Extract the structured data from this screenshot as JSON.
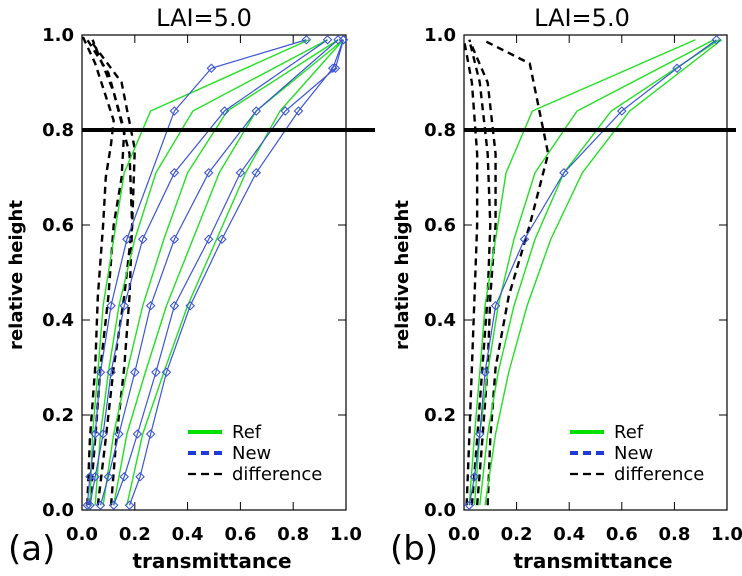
{
  "figure": {
    "panel_labels": [
      "(a)",
      "(b)"
    ]
  },
  "chart_data": [
    {
      "type": "line",
      "panel": "(a)",
      "title": "LAI=5.0",
      "xlabel": "transmittance",
      "ylabel": "relative height",
      "xlim": [
        0.0,
        1.0
      ],
      "ylim": [
        0.0,
        1.0
      ],
      "xticks": [
        "0.0",
        "0.2",
        "0.4",
        "0.6",
        "0.8",
        "1.0"
      ],
      "yticks": [
        "0.0",
        "0.2",
        "0.4",
        "0.6",
        "0.8",
        "1.0"
      ],
      "hline": 0.8,
      "legend": {
        "position": "bottom-right",
        "entries": [
          {
            "label": "Ref",
            "style": "solid",
            "color": "#00e000"
          },
          {
            "label": "New",
            "style": "dashed",
            "color": "#1e3adb"
          },
          {
            "label": "difference",
            "style": "dashed",
            "color": "#000000"
          }
        ]
      },
      "colors": {
        "ref": "#22e022",
        "new": "#3b55d6",
        "difference": "#000000"
      },
      "series_ref": [
        {
          "x": [
            0.03,
            0.04,
            0.06,
            0.08,
            0.12,
            0.16,
            0.26,
            0.86
          ],
          "y": [
            0.01,
            0.16,
            0.29,
            0.43,
            0.57,
            0.71,
            0.84,
            0.99
          ]
        },
        {
          "x": [
            0.05,
            0.07,
            0.1,
            0.14,
            0.2,
            0.28,
            0.42,
            0.93
          ],
          "y": [
            0.01,
            0.16,
            0.29,
            0.43,
            0.57,
            0.71,
            0.84,
            0.99
          ]
        },
        {
          "x": [
            0.08,
            0.12,
            0.17,
            0.23,
            0.31,
            0.4,
            0.55,
            0.97
          ],
          "y": [
            0.01,
            0.16,
            0.29,
            0.43,
            0.57,
            0.71,
            0.84,
            0.99
          ]
        },
        {
          "x": [
            0.12,
            0.17,
            0.24,
            0.32,
            0.42,
            0.52,
            0.66,
            0.99
          ],
          "y": [
            0.01,
            0.16,
            0.29,
            0.43,
            0.57,
            0.71,
            0.84,
            0.99
          ]
        },
        {
          "x": [
            0.17,
            0.23,
            0.31,
            0.4,
            0.51,
            0.62,
            0.75,
            0.99
          ],
          "y": [
            0.01,
            0.16,
            0.29,
            0.43,
            0.57,
            0.71,
            0.84,
            0.99
          ]
        }
      ],
      "series_new": [
        {
          "x": [
            0.02,
            0.03,
            0.05,
            0.07,
            0.11,
            0.17,
            0.35,
            0.49,
            0.85
          ],
          "y": [
            0.01,
            0.07,
            0.16,
            0.29,
            0.43,
            0.57,
            0.84,
            0.93,
            0.99
          ]
        },
        {
          "x": [
            0.03,
            0.05,
            0.08,
            0.11,
            0.16,
            0.23,
            0.35,
            0.54,
            0.93
          ],
          "y": [
            0.01,
            0.07,
            0.16,
            0.29,
            0.43,
            0.57,
            0.71,
            0.84,
            0.99
          ]
        },
        {
          "x": [
            0.07,
            0.1,
            0.14,
            0.2,
            0.26,
            0.35,
            0.48,
            0.66,
            0.97
          ],
          "y": [
            0.01,
            0.07,
            0.16,
            0.29,
            0.43,
            0.57,
            0.71,
            0.84,
            0.99
          ]
        },
        {
          "x": [
            0.12,
            0.16,
            0.21,
            0.28,
            0.35,
            0.48,
            0.6,
            0.77,
            0.96,
            0.99
          ],
          "y": [
            0.01,
            0.07,
            0.16,
            0.29,
            0.43,
            0.57,
            0.71,
            0.84,
            0.93,
            0.99
          ]
        },
        {
          "x": [
            0.18,
            0.22,
            0.26,
            0.32,
            0.41,
            0.53,
            0.66,
            0.82,
            0.95,
            0.99
          ],
          "y": [
            0.01,
            0.07,
            0.16,
            0.29,
            0.43,
            0.57,
            0.71,
            0.84,
            0.93,
            0.99
          ]
        }
      ],
      "series_difference": [
        {
          "x": [
            0.02,
            0.03,
            0.05,
            0.06,
            0.08,
            0.09,
            0.11,
            0.12,
            0.05,
            0.0
          ],
          "y": [
            0.01,
            0.15,
            0.3,
            0.45,
            0.6,
            0.7,
            0.77,
            0.82,
            0.94,
            1.0
          ]
        },
        {
          "x": [
            0.03,
            0.05,
            0.07,
            0.1,
            0.12,
            0.15,
            0.16,
            0.1,
            0.02
          ],
          "y": [
            0.01,
            0.15,
            0.3,
            0.45,
            0.6,
            0.7,
            0.8,
            0.92,
            0.99
          ]
        },
        {
          "x": [
            0.06,
            0.09,
            0.12,
            0.16,
            0.19,
            0.2,
            0.15,
            0.03
          ],
          "y": [
            0.01,
            0.15,
            0.3,
            0.45,
            0.6,
            0.76,
            0.9,
            0.99
          ]
        },
        {
          "x": [
            0.11,
            0.13,
            0.16,
            0.18,
            0.19,
            0.18,
            0.12,
            0.04
          ],
          "y": [
            0.01,
            0.15,
            0.3,
            0.45,
            0.6,
            0.75,
            0.88,
            0.99
          ]
        }
      ]
    },
    {
      "type": "line",
      "panel": "(b)",
      "title": "LAI=5.0",
      "xlabel": "transmittance",
      "ylabel": "relative height",
      "xlim": [
        0.0,
        1.0
      ],
      "ylim": [
        0.0,
        1.0
      ],
      "xticks": [
        "0.0",
        "0.2",
        "0.4",
        "0.6",
        "0.8",
        "1.0"
      ],
      "yticks": [
        "0.0",
        "0.2",
        "0.4",
        "0.6",
        "0.8",
        "1.0"
      ],
      "hline": 0.8,
      "legend": {
        "position": "bottom-right",
        "entries": [
          {
            "label": "Ref",
            "style": "solid",
            "color": "#00e000"
          },
          {
            "label": "New",
            "style": "dashed",
            "color": "#1e3adb"
          },
          {
            "label": "difference",
            "style": "dashed",
            "color": "#000000"
          }
        ]
      },
      "colors": {
        "ref": "#22e022",
        "new": "#3b55d6",
        "difference": "#000000"
      },
      "series_ref": [
        {
          "x": [
            0.02,
            0.04,
            0.06,
            0.08,
            0.12,
            0.16,
            0.26,
            0.88
          ],
          "y": [
            0.01,
            0.16,
            0.29,
            0.43,
            0.57,
            0.71,
            0.84,
            0.99
          ]
        },
        {
          "x": [
            0.04,
            0.06,
            0.09,
            0.13,
            0.19,
            0.27,
            0.43,
            0.95
          ],
          "y": [
            0.01,
            0.16,
            0.29,
            0.43,
            0.57,
            0.71,
            0.84,
            0.99
          ]
        },
        {
          "x": [
            0.06,
            0.09,
            0.13,
            0.19,
            0.27,
            0.38,
            0.56,
            0.97
          ],
          "y": [
            0.01,
            0.16,
            0.29,
            0.43,
            0.57,
            0.71,
            0.84,
            0.99
          ]
        },
        {
          "x": [
            0.08,
            0.12,
            0.17,
            0.24,
            0.33,
            0.45,
            0.63,
            0.98
          ],
          "y": [
            0.01,
            0.16,
            0.29,
            0.43,
            0.57,
            0.71,
            0.84,
            0.99
          ]
        }
      ],
      "series_new": [
        {
          "x": [
            0.02,
            0.04,
            0.06,
            0.08,
            0.12,
            0.23,
            0.38,
            0.6,
            0.81,
            0.96
          ],
          "y": [
            0.01,
            0.07,
            0.16,
            0.29,
            0.43,
            0.57,
            0.71,
            0.84,
            0.93,
            0.99
          ]
        }
      ],
      "series_difference": [
        {
          "x": [
            0.01,
            0.02,
            0.03,
            0.04,
            0.05,
            0.05,
            0.03,
            0.0
          ],
          "y": [
            0.01,
            0.15,
            0.3,
            0.45,
            0.6,
            0.75,
            0.9,
            0.99
          ]
        },
        {
          "x": [
            0.03,
            0.05,
            0.07,
            0.09,
            0.1,
            0.09,
            0.06,
            0.02
          ],
          "y": [
            0.01,
            0.15,
            0.3,
            0.45,
            0.6,
            0.75,
            0.9,
            0.99
          ]
        },
        {
          "x": [
            0.05,
            0.07,
            0.09,
            0.1,
            0.12,
            0.12,
            0.09,
            0.02
          ],
          "y": [
            0.01,
            0.15,
            0.3,
            0.45,
            0.6,
            0.75,
            0.9,
            0.99
          ]
        },
        {
          "x": [
            0.09,
            0.1,
            0.12,
            0.17,
            0.25,
            0.32,
            0.25,
            0.07
          ],
          "y": [
            0.01,
            0.15,
            0.3,
            0.45,
            0.6,
            0.75,
            0.94,
            0.99
          ]
        }
      ]
    }
  ]
}
